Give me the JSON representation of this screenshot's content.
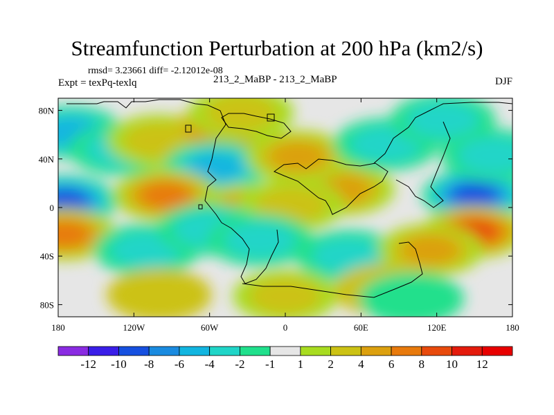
{
  "header": {
    "title": "Streamfunction Perturbation at 200 hPa (km2/s)",
    "stats": "rmsd= 3.23661  diff= -2.12012e-08",
    "experiment": "Expt = texPq-texlq",
    "cases": "213_2_MaBP - 213_2_MaBP",
    "season": "DJF"
  },
  "chart_data": {
    "type": "heatmap",
    "title": "Streamfunction Perturbation at 200 hPa (km2/s)",
    "xlabel": "",
    "ylabel": "",
    "xlim": [
      -180,
      180
    ],
    "ylim": [
      -90,
      90
    ],
    "x_ticks": [
      {
        "value": -180,
        "label": "180"
      },
      {
        "value": -120,
        "label": "120W"
      },
      {
        "value": -60,
        "label": "60W"
      },
      {
        "value": 0,
        "label": "0"
      },
      {
        "value": 60,
        "label": "60E"
      },
      {
        "value": 120,
        "label": "120E"
      },
      {
        "value": 180,
        "label": "180"
      }
    ],
    "y_ticks": [
      {
        "value": 80,
        "label": "80N"
      },
      {
        "value": 40,
        "label": "40N"
      },
      {
        "value": 0,
        "label": "0"
      },
      {
        "value": -40,
        "label": "40S"
      },
      {
        "value": -80,
        "label": "80S"
      }
    ],
    "colorbar": {
      "levels": [
        "-12",
        "-10",
        "-8",
        "-6",
        "-4",
        "-2",
        "-1",
        "1",
        "2",
        "4",
        "6",
        "8",
        "10",
        "12"
      ],
      "colors": [
        "#8a2be2",
        "#3a1ee8",
        "#1650e0",
        "#1a8be0",
        "#12b5e0",
        "#20d5c8",
        "#20e08c",
        "#e6e6e6",
        "#a8dc20",
        "#ccc214",
        "#dca00e",
        "#e87a0c",
        "#e84a0c",
        "#e41b0c",
        "#e80000"
      ]
    },
    "centers": [
      {
        "lon": -175,
        "lat": 5,
        "value": -9
      },
      {
        "lon": -170,
        "lat": 62,
        "value": -5
      },
      {
        "lon": -130,
        "lat": 48,
        "value": -4
      },
      {
        "lon": -100,
        "lat": 55,
        "value": 3
      },
      {
        "lon": -50,
        "lat": 62,
        "value": 4
      },
      {
        "lon": -35,
        "lat": 78,
        "value": 3
      },
      {
        "lon": -55,
        "lat": 33,
        "value": -5
      },
      {
        "lon": 35,
        "lat": 25,
        "value": 9
      },
      {
        "lon": 45,
        "lat": 15,
        "value": 5
      },
      {
        "lon": 10,
        "lat": 42,
        "value": 5
      },
      {
        "lon": 80,
        "lat": 52,
        "value": -4
      },
      {
        "lon": 150,
        "lat": 10,
        "value": -10
      },
      {
        "lon": 125,
        "lat": 72,
        "value": -4
      },
      {
        "lon": 165,
        "lat": 43,
        "value": -3
      },
      {
        "lon": -95,
        "lat": 10,
        "value": 7
      },
      {
        "lon": -30,
        "lat": -2,
        "value": 5
      },
      {
        "lon": 5,
        "lat": 2,
        "value": 3
      },
      {
        "lon": -175,
        "lat": -22,
        "value": 7
      },
      {
        "lon": -110,
        "lat": -35,
        "value": -4
      },
      {
        "lon": -60,
        "lat": -18,
        "value": -3
      },
      {
        "lon": -20,
        "lat": -27,
        "value": -4
      },
      {
        "lon": 50,
        "lat": -40,
        "value": -4
      },
      {
        "lon": 150,
        "lat": -20,
        "value": 9
      },
      {
        "lon": 115,
        "lat": -35,
        "value": 5
      },
      {
        "lon": -100,
        "lat": -72,
        "value": 2
      },
      {
        "lon": 0,
        "lat": -73,
        "value": 3
      },
      {
        "lon": 80,
        "lat": -68,
        "value": 2
      },
      {
        "lon": 100,
        "lat": -75,
        "value": -2
      }
    ]
  }
}
